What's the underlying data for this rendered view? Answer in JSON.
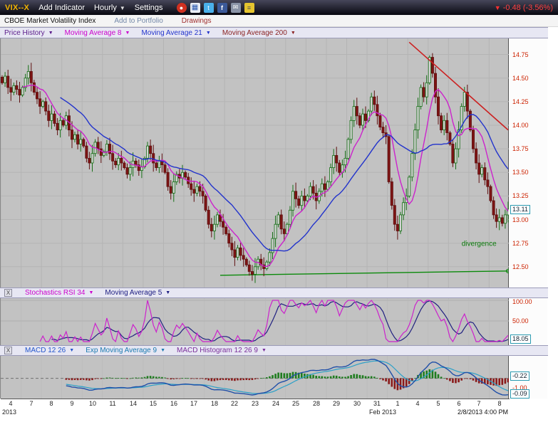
{
  "toolbar": {
    "symbol": "VIX--X",
    "add_indicator": "Add Indicator",
    "interval": "Hourly",
    "settings": "Settings",
    "icons": [
      "pin",
      "chart",
      "twitter",
      "facebook",
      "email",
      "notes"
    ],
    "change": "-0.48 (-3.56%)",
    "change_color": "#ff4040"
  },
  "infobar": {
    "description": "CBOE Market Volatility Index",
    "add_to_portfolio": "Add to Portfolio",
    "drawings": "Drawings"
  },
  "panels": {
    "main": {
      "indicators": [
        {
          "label": "Price History",
          "color": "#5a1a8a"
        },
        {
          "label": "Moving Average 8",
          "color": "#cc00cc"
        },
        {
          "label": "Moving Average 21",
          "color": "#2233cc"
        },
        {
          "label": "Moving Average 200",
          "color": "#8a2222"
        }
      ],
      "last_price": "13.11",
      "annotation_text": "divergence"
    },
    "stoch": {
      "close": "X",
      "indicators": [
        {
          "label": "Stochastics RSI 34",
          "color": "#cc00cc"
        },
        {
          "label": "Moving Average 5",
          "color": "#1a1a80"
        }
      ],
      "ticks": [
        "100.00",
        "50.00"
      ],
      "last_value": "18.05"
    },
    "macd": {
      "close": "X",
      "indicators": [
        {
          "label": "MACD 12 26",
          "color": "#2255cc"
        },
        {
          "label": "Exp Moving Average 9",
          "color": "#1a7ab0"
        },
        {
          "label": "MACD Histogram 12 26 9",
          "color": "#7a2d9a"
        }
      ],
      "macd_value": "-0.22",
      "scale_label": "-1.00",
      "hist_value": "-0.09"
    }
  },
  "xaxis": {
    "day_labels": [
      "4",
      "7",
      "8",
      "9",
      "10",
      "11",
      "14",
      "15",
      "16",
      "17",
      "18",
      "22",
      "23",
      "24",
      "25",
      "28",
      "29",
      "30",
      "31",
      "1",
      "4",
      "5",
      "6",
      "7",
      "8"
    ],
    "year_label": "2013",
    "month_label": "Feb 2013",
    "timestamp": "2/8/2013 4:00 PM"
  },
  "chart_data": {
    "type": "candlestick",
    "symbol": "VIX--X",
    "title": "CBOE Market Volatility Index, Hourly",
    "interval": "Hourly",
    "bars_per_day": 7,
    "day_labels": [
      "4",
      "7",
      "8",
      "9",
      "10",
      "11",
      "14",
      "15",
      "16",
      "17",
      "18",
      "22",
      "23",
      "24",
      "25",
      "28",
      "29",
      "30",
      "31",
      "1",
      "4",
      "5",
      "6",
      "7",
      "8"
    ],
    "ylim": [
      12.28,
      14.92
    ],
    "yticks": [
      14.75,
      14.5,
      14.25,
      14.0,
      13.75,
      13.5,
      13.25,
      13.0,
      12.75,
      12.5
    ],
    "last": 13.11,
    "closes": [
      14.45,
      14.52,
      14.4,
      14.35,
      14.42,
      14.38,
      14.32,
      14.4,
      14.5,
      14.57,
      14.45,
      14.35,
      14.28,
      14.2,
      14.25,
      14.15,
      14.05,
      14.12,
      14.02,
      13.95,
      14.05,
      14.0,
      14.1,
      13.95,
      13.85,
      13.9,
      13.8,
      13.85,
      13.78,
      13.65,
      13.6,
      13.7,
      13.82,
      13.75,
      13.68,
      13.72,
      13.8,
      13.7,
      13.62,
      13.58,
      13.65,
      13.6,
      13.55,
      13.48,
      13.55,
      13.62,
      13.58,
      13.52,
      13.56,
      13.65,
      13.78,
      13.7,
      13.6,
      13.55,
      13.62,
      13.58,
      13.5,
      13.35,
      13.28,
      13.4,
      13.48,
      13.44,
      13.5,
      13.45,
      13.38,
      13.32,
      13.28,
      13.35,
      13.3,
      13.25,
      13.1,
      12.95,
      12.88,
      12.95,
      13.05,
      12.98,
      12.92,
      12.85,
      12.75,
      12.68,
      12.6,
      12.7,
      12.62,
      12.58,
      12.52,
      12.45,
      12.42,
      12.5,
      12.58,
      12.52,
      12.48,
      12.55,
      12.65,
      12.8,
      12.95,
      13.05,
      12.9,
      12.85,
      12.95,
      13.1,
      13.3,
      13.22,
      13.15,
      13.25,
      13.2,
      13.25,
      13.35,
      13.28,
      13.2,
      13.3,
      13.38,
      13.32,
      13.4,
      13.55,
      13.68,
      13.6,
      13.5,
      13.58,
      13.65,
      13.85,
      14.05,
      14.2,
      14.1,
      14.0,
      14.12,
      14.05,
      14.15,
      14.3,
      14.22,
      14.1,
      13.98,
      13.92,
      13.88,
      13.4,
      13.15,
      12.95,
      12.88,
      13.05,
      13.18,
      13.25,
      13.45,
      13.7,
      13.95,
      14.2,
      14.4,
      14.3,
      14.45,
      14.72,
      14.55,
      14.3,
      14.1,
      13.95,
      14.05,
      13.92,
      13.8,
      13.6,
      13.75,
      13.95,
      14.2,
      14.35,
      14.15,
      13.95,
      13.75,
      13.6,
      13.48,
      13.55,
      13.42,
      13.35,
      13.2,
      13.05,
      12.98,
      13.02,
      12.96,
      13.05,
      13.11
    ],
    "overlays": [
      {
        "name": "Moving Average 200",
        "type": "segment",
        "color": "#0a8a0a",
        "points": [
          [
            75,
            12.41
          ],
          [
            174,
            12.455
          ]
        ],
        "end_marker": true
      },
      {
        "name": "Moving Average 8",
        "type": "sma",
        "period": 8,
        "color": "#cc22cc"
      },
      {
        "name": "Moving Average 21",
        "type": "sma",
        "period": 21,
        "color": "#2233cc"
      }
    ],
    "annotations": [
      {
        "type": "trendline",
        "color": "#cc2020",
        "from": [
          140,
          14.88
        ],
        "to": [
          174,
          13.95
        ]
      },
      {
        "type": "text",
        "text": "divergence",
        "color": "#0a7a0a",
        "at": [
          164,
          12.72
        ]
      }
    ],
    "subcharts": [
      {
        "type": "line",
        "name": "Stochastics RSI 34",
        "overlay": "Moving Average 5",
        "range": [
          0,
          100
        ],
        "ticks": [
          100,
          50
        ],
        "last": 18.05,
        "colors": {
          "main": "#cc22cc",
          "overlay": "#202080"
        }
      },
      {
        "type": "macd_histogram",
        "name": "MACD 12 26",
        "signal": "Exp Moving Average 9",
        "histogram": "MACD Histogram 12 26 9",
        "labels": {
          "macd": -0.22,
          "scale": -1.0,
          "hist": -0.09
        },
        "colors": {
          "macd": "#1f4fa8",
          "signal": "#2aa0c8",
          "hist_pos": "#1e7d1e",
          "hist_neg": "#8a1a1a"
        }
      }
    ]
  }
}
